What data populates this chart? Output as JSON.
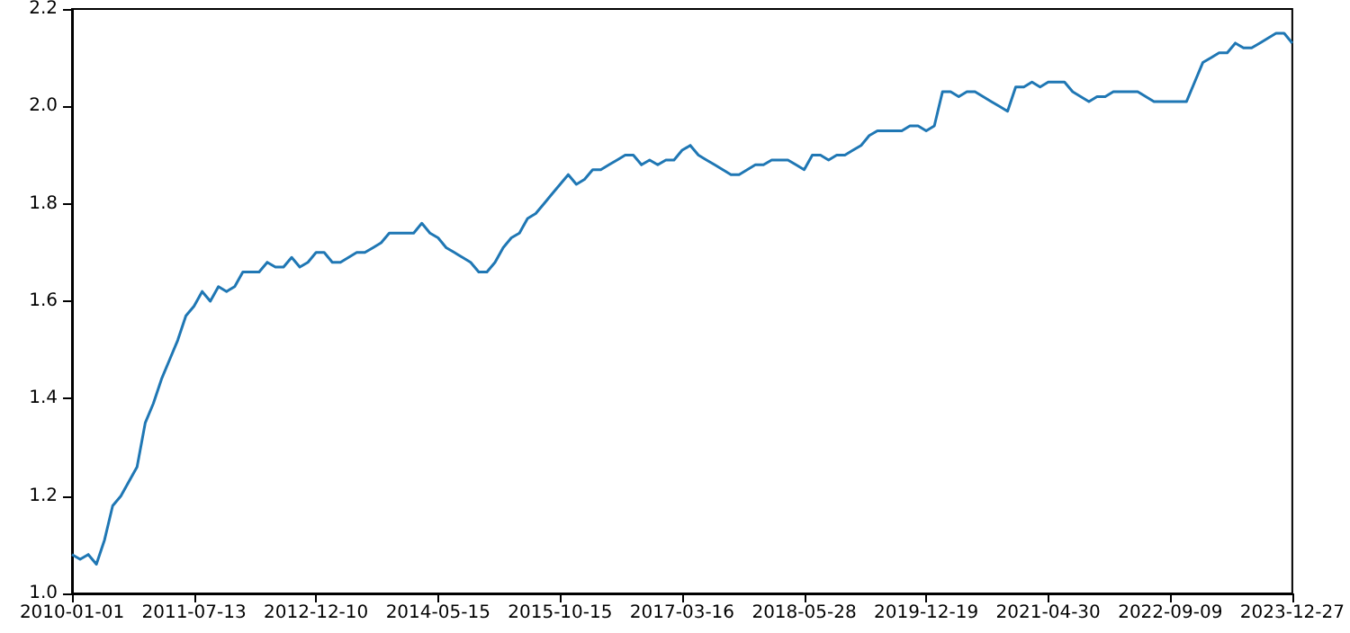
{
  "chart_data": {
    "type": "line",
    "categories": [
      "2010-01-01",
      null,
      null,
      null,
      null,
      null,
      null,
      null,
      null,
      null,
      null,
      null,
      null,
      null,
      null,
      "2011-07-13",
      null,
      null,
      null,
      null,
      null,
      null,
      null,
      null,
      null,
      null,
      null,
      null,
      null,
      null,
      "2012-12-10",
      null,
      null,
      null,
      null,
      null,
      null,
      null,
      null,
      null,
      null,
      null,
      null,
      null,
      null,
      "2014-05-15",
      null,
      null,
      null,
      null,
      null,
      null,
      null,
      null,
      null,
      null,
      null,
      null,
      null,
      null,
      "2015-10-15",
      null,
      null,
      null,
      null,
      null,
      null,
      null,
      null,
      null,
      null,
      null,
      null,
      null,
      null,
      "2017-03-16",
      null,
      null,
      null,
      null,
      null,
      null,
      null,
      null,
      null,
      null,
      null,
      null,
      null,
      null,
      "2018-05-28",
      null,
      null,
      null,
      null,
      null,
      null,
      null,
      null,
      null,
      null,
      null,
      null,
      null,
      null,
      "2019-12-19",
      null,
      null,
      null,
      null,
      null,
      null,
      null,
      null,
      null,
      null,
      null,
      null,
      null,
      null,
      "2021-04-30",
      null,
      null,
      null,
      null,
      null,
      null,
      null,
      null,
      null,
      null,
      null,
      null,
      null,
      null,
      "2022-09-09",
      null,
      null,
      null,
      null,
      null,
      null,
      null,
      null,
      null,
      null,
      null,
      null,
      null,
      null,
      "2023-12-27"
    ],
    "values": [
      1.08,
      1.07,
      1.08,
      1.06,
      1.11,
      1.18,
      1.2,
      1.23,
      1.26,
      1.35,
      1.39,
      1.44,
      1.48,
      1.52,
      1.57,
      1.59,
      1.62,
      1.6,
      1.63,
      1.62,
      1.63,
      1.66,
      1.66,
      1.66,
      1.68,
      1.67,
      1.67,
      1.69,
      1.67,
      1.68,
      1.7,
      1.7,
      1.68,
      1.68,
      1.69,
      1.7,
      1.7,
      1.71,
      1.72,
      1.74,
      1.74,
      1.74,
      1.74,
      1.76,
      1.74,
      1.73,
      1.71,
      1.7,
      1.69,
      1.68,
      1.66,
      1.66,
      1.68,
      1.71,
      1.73,
      1.74,
      1.77,
      1.78,
      1.8,
      1.82,
      1.84,
      1.86,
      1.84,
      1.85,
      1.87,
      1.87,
      1.88,
      1.89,
      1.9,
      1.9,
      1.88,
      1.89,
      1.88,
      1.89,
      1.89,
      1.91,
      1.92,
      1.9,
      1.89,
      1.88,
      1.87,
      1.86,
      1.86,
      1.87,
      1.88,
      1.88,
      1.89,
      1.89,
      1.89,
      1.88,
      1.87,
      1.9,
      1.9,
      1.89,
      1.9,
      1.9,
      1.91,
      1.92,
      1.94,
      1.95,
      1.95,
      1.95,
      1.95,
      1.96,
      1.96,
      1.95,
      1.96,
      2.03,
      2.03,
      2.02,
      2.03,
      2.03,
      2.02,
      2.01,
      2.0,
      1.99,
      2.04,
      2.04,
      2.05,
      2.04,
      2.05,
      2.05,
      2.05,
      2.03,
      2.02,
      2.01,
      2.02,
      2.02,
      2.03,
      2.03,
      2.03,
      2.03,
      2.02,
      2.01,
      2.01,
      2.01,
      2.01,
      2.01,
      2.05,
      2.09,
      2.1,
      2.11,
      2.11,
      2.13,
      2.12,
      2.12,
      2.13,
      2.14,
      2.15,
      2.15,
      2.13
    ],
    "color": "#1f77b4",
    "ylim": [
      1.0,
      2.2
    ],
    "yticks": [
      {
        "value": 1.0,
        "label": "1.0"
      },
      {
        "value": 1.2,
        "label": "1.2"
      },
      {
        "value": 1.4,
        "label": "1.4"
      },
      {
        "value": 1.6,
        "label": "1.6"
      },
      {
        "value": 1.8,
        "label": "1.8"
      },
      {
        "value": 2.0,
        "label": "2.0"
      },
      {
        "value": 2.2,
        "label": "2.2"
      }
    ]
  }
}
